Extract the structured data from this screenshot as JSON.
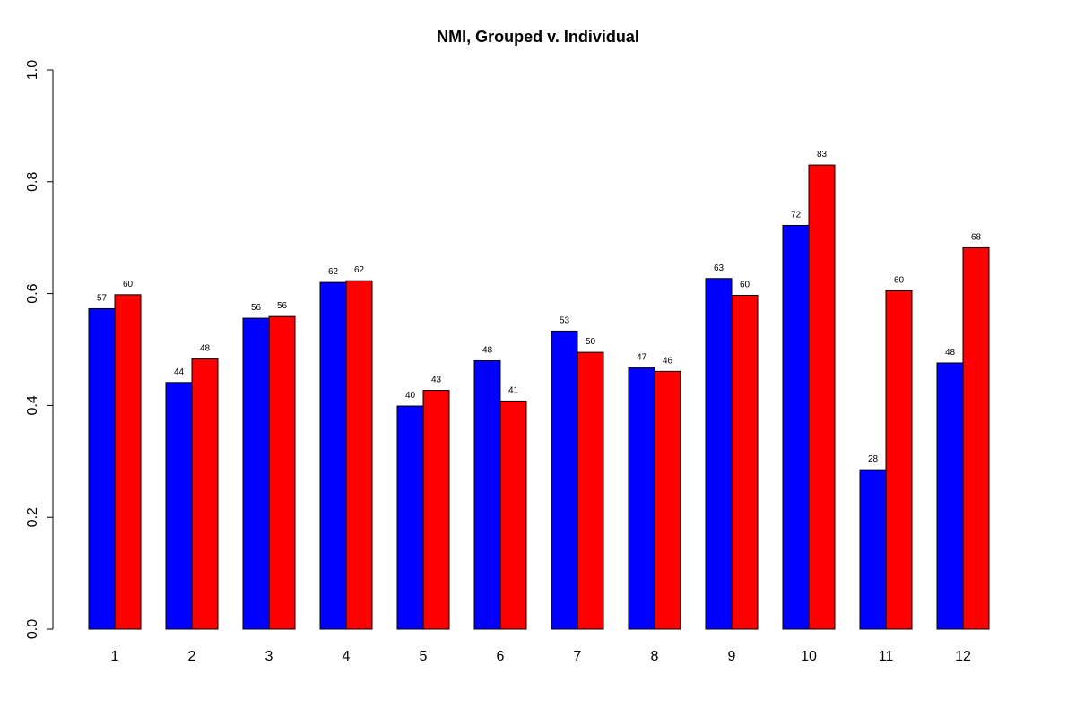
{
  "chart_data": {
    "type": "bar",
    "title": "NMI, Grouped v. Individual",
    "xlabel": "",
    "ylabel": "",
    "ylim": [
      0,
      1
    ],
    "yticks": [
      "0.0",
      "0.2",
      "0.4",
      "0.6",
      "0.8",
      "1.0"
    ],
    "categories": [
      "1",
      "2",
      "3",
      "4",
      "5",
      "6",
      "7",
      "8",
      "9",
      "10",
      "11",
      "12"
    ],
    "series": [
      {
        "color": "#0000ff",
        "values": [
          0.573,
          0.441,
          0.556,
          0.62,
          0.399,
          0.48,
          0.533,
          0.467,
          0.627,
          0.722,
          0.285,
          0.476
        ],
        "labels": [
          "57",
          "44",
          "56",
          "62",
          "40",
          "48",
          "53",
          "47",
          "63",
          "72",
          "28",
          "48"
        ]
      },
      {
        "color": "#ff0000",
        "values": [
          0.598,
          0.483,
          0.559,
          0.623,
          0.427,
          0.408,
          0.495,
          0.461,
          0.597,
          0.83,
          0.605,
          0.682
        ],
        "labels": [
          "60",
          "48",
          "56",
          "62",
          "43",
          "41",
          "50",
          "46",
          "60",
          "83",
          "60",
          "68"
        ]
      }
    ],
    "grid": false,
    "legend": "none"
  }
}
